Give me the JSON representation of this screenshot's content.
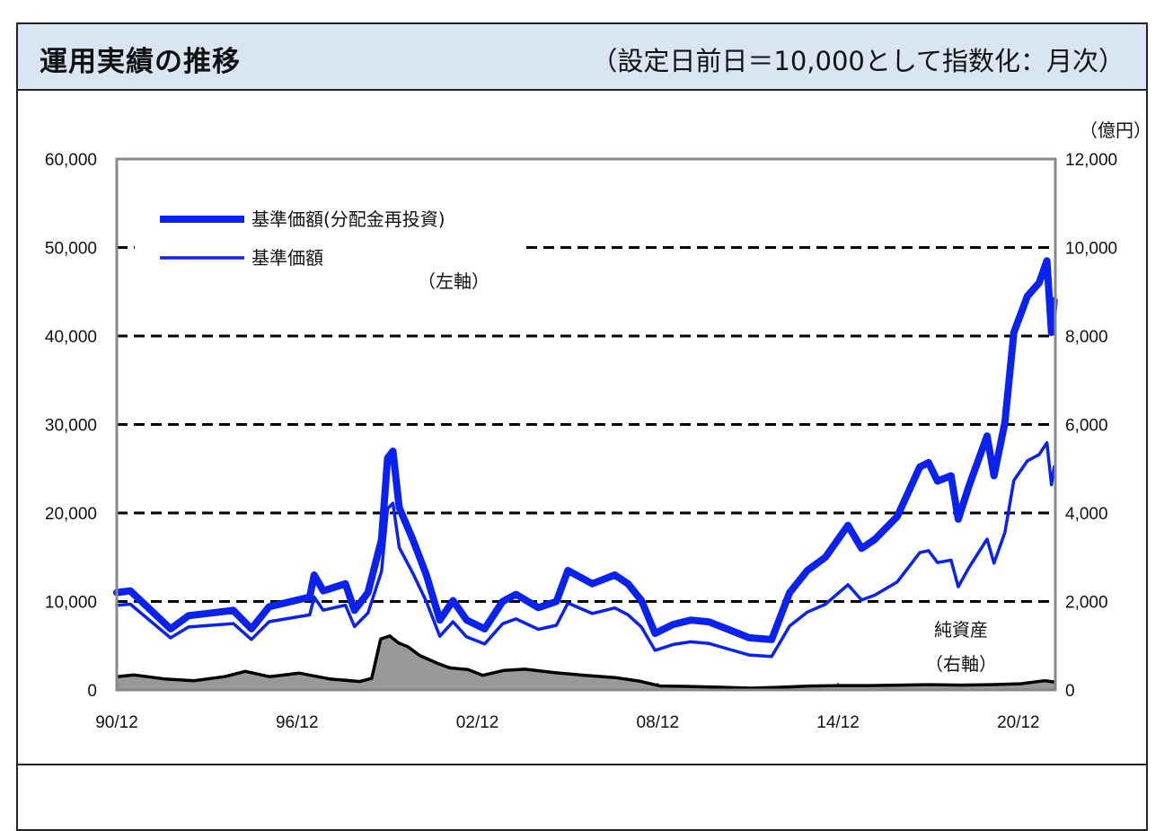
{
  "header": {
    "title": "運用実績の推移",
    "subtitle": "（設定日前日＝10,000として指数化：月次）"
  },
  "chart_data": {
    "type": "line",
    "title": "運用実績の推移",
    "subtitle": "（設定日前日＝10,000として指数化：月次）",
    "left_axis": {
      "ylim": [
        0,
        60000
      ],
      "ticks": [
        "0",
        "10,000",
        "20,000",
        "30,000",
        "40,000",
        "50,000",
        "60,000"
      ],
      "tick_values": [
        0,
        10000,
        20000,
        30000,
        40000,
        50000,
        60000
      ],
      "annotation": "（左軸）"
    },
    "right_axis": {
      "unit": "（億円）",
      "ylim": [
        0,
        12000
      ],
      "ticks": [
        "0",
        "2,000",
        "4,000",
        "6,000",
        "8,000",
        "10,000",
        "12,000"
      ],
      "tick_values": [
        0,
        2000,
        4000,
        6000,
        8000,
        10000,
        12000
      ]
    },
    "xlim": [
      1990.92,
      2022.15
    ],
    "x_ticks": [
      "90/12",
      "96/12",
      "02/12",
      "08/12",
      "14/12",
      "20/12"
    ],
    "x_tick_values": [
      1990.92,
      1996.92,
      2002.92,
      2008.92,
      2014.92,
      2020.92
    ],
    "grid": "dashed horizontal",
    "legend": {
      "placement": "top-left",
      "entries": [
        "基準価額(分配金再投資)",
        "基準価額"
      ]
    },
    "series": [
      {
        "name": "基準価額(分配金再投資)",
        "axis": "left",
        "color": "#0a22f0",
        "style": "thick",
        "x": [
          1990.92,
          1991.37,
          1992.71,
          1993.31,
          1994.8,
          1995.4,
          1995.99,
          1997.34,
          1997.49,
          1997.79,
          1998.53,
          1998.83,
          1999.28,
          1999.73,
          1999.93,
          2000.11,
          2000.32,
          2000.77,
          2001.22,
          2001.67,
          2002.11,
          2002.56,
          2003.16,
          2003.76,
          2004.2,
          2004.95,
          2005.55,
          2005.93,
          2006.74,
          2007.49,
          2007.93,
          2008.38,
          2008.83,
          2009.43,
          2010.02,
          2010.62,
          2011.22,
          2011.96,
          2012.71,
          2013.31,
          2013.9,
          2014.5,
          2015.25,
          2015.7,
          2016.14,
          2016.89,
          2017.64,
          2017.93,
          2018.23,
          2018.68,
          2018.92,
          2019.28,
          2019.88,
          2020.11,
          2020.47,
          2020.77,
          2021.22,
          2021.61,
          2021.87,
          2022.02,
          2022.11
        ],
        "values": [
          11000,
          11200,
          6900,
          8400,
          9000,
          6900,
          9400,
          10500,
          13000,
          11200,
          12000,
          9000,
          11000,
          17000,
          26200,
          27000,
          20600,
          17000,
          13000,
          7900,
          10100,
          7900,
          6900,
          10000,
          10800,
          9300,
          10000,
          13500,
          12000,
          13000,
          12000,
          10100,
          6400,
          7400,
          7900,
          7700,
          6900,
          5900,
          5700,
          11000,
          13500,
          15000,
          18600,
          16000,
          17000,
          19600,
          25200,
          25700,
          23600,
          24200,
          19300,
          23100,
          28700,
          24200,
          30200,
          40400,
          44500,
          46000,
          48500,
          40400,
          44000
        ]
      },
      {
        "name": "基準価額",
        "axis": "left",
        "color": "#0a22f0",
        "style": "thin",
        "x": [
          1990.92,
          1991.37,
          1992.71,
          1993.31,
          1994.8,
          1995.4,
          1995.99,
          1997.34,
          1997.49,
          1997.79,
          1998.53,
          1998.83,
          1999.28,
          1999.73,
          1999.93,
          2000.11,
          2000.32,
          2000.77,
          2001.22,
          2001.67,
          2002.11,
          2002.56,
          2003.16,
          2003.76,
          2004.2,
          2004.95,
          2005.55,
          2005.93,
          2006.74,
          2007.49,
          2007.93,
          2008.38,
          2008.83,
          2009.43,
          2010.02,
          2010.62,
          2011.22,
          2011.96,
          2012.71,
          2013.31,
          2013.9,
          2014.5,
          2015.25,
          2015.7,
          2016.14,
          2016.89,
          2017.64,
          2017.93,
          2018.23,
          2018.68,
          2018.92,
          2019.28,
          2019.88,
          2020.11,
          2020.47,
          2020.77,
          2021.22,
          2021.61,
          2021.87,
          2022.02,
          2022.11
        ],
        "values": [
          9570,
          9700,
          5890,
          7120,
          7500,
          5710,
          7720,
          8490,
          10500,
          9020,
          9580,
          7160,
          8700,
          13400,
          20500,
          21100,
          16100,
          13200,
          10000,
          6070,
          7710,
          6000,
          5200,
          7480,
          8030,
          6850,
          7310,
          9820,
          8640,
          9270,
          8500,
          7110,
          4480,
          5140,
          5440,
          5260,
          4670,
          3950,
          3780,
          7230,
          8800,
          9690,
          11890,
          10160,
          10710,
          12210,
          15520,
          15750,
          14400,
          14670,
          11660,
          13860,
          17050,
          14330,
          17790,
          23670,
          25900,
          26590,
          27940,
          23190,
          25210
        ]
      },
      {
        "name": "純資産",
        "axis": "right",
        "color": "#999999",
        "style": "area",
        "annotation": [
          "純資産",
          "（右軸）"
        ],
        "x": [
          1990.92,
          1991.5,
          1992.5,
          1993.5,
          1994.5,
          1995.2,
          1996.0,
          1997.0,
          1998.0,
          1999.0,
          1999.4,
          1999.7,
          2000.0,
          2000.3,
          2000.6,
          2001.0,
          2001.6,
          2002.0,
          2002.6,
          2003.1,
          2003.8,
          2004.5,
          2005.5,
          2006.5,
          2007.5,
          2008.3,
          2009.0,
          2010.0,
          2011.0,
          2012.0,
          2013.0,
          2014.0,
          2015.0,
          2016.0,
          2017.0,
          2018.0,
          2019.0,
          2020.0,
          2021.0,
          2021.8,
          2022.11
        ],
        "values": [
          300,
          340,
          250,
          210,
          300,
          420,
          300,
          380,
          250,
          190,
          260,
          1150,
          1220,
          1060,
          980,
          780,
          600,
          500,
          460,
          330,
          440,
          470,
          390,
          330,
          280,
          200,
          90,
          80,
          60,
          40,
          60,
          90,
          100,
          100,
          110,
          120,
          110,
          120,
          140,
          210,
          180
        ]
      }
    ]
  }
}
